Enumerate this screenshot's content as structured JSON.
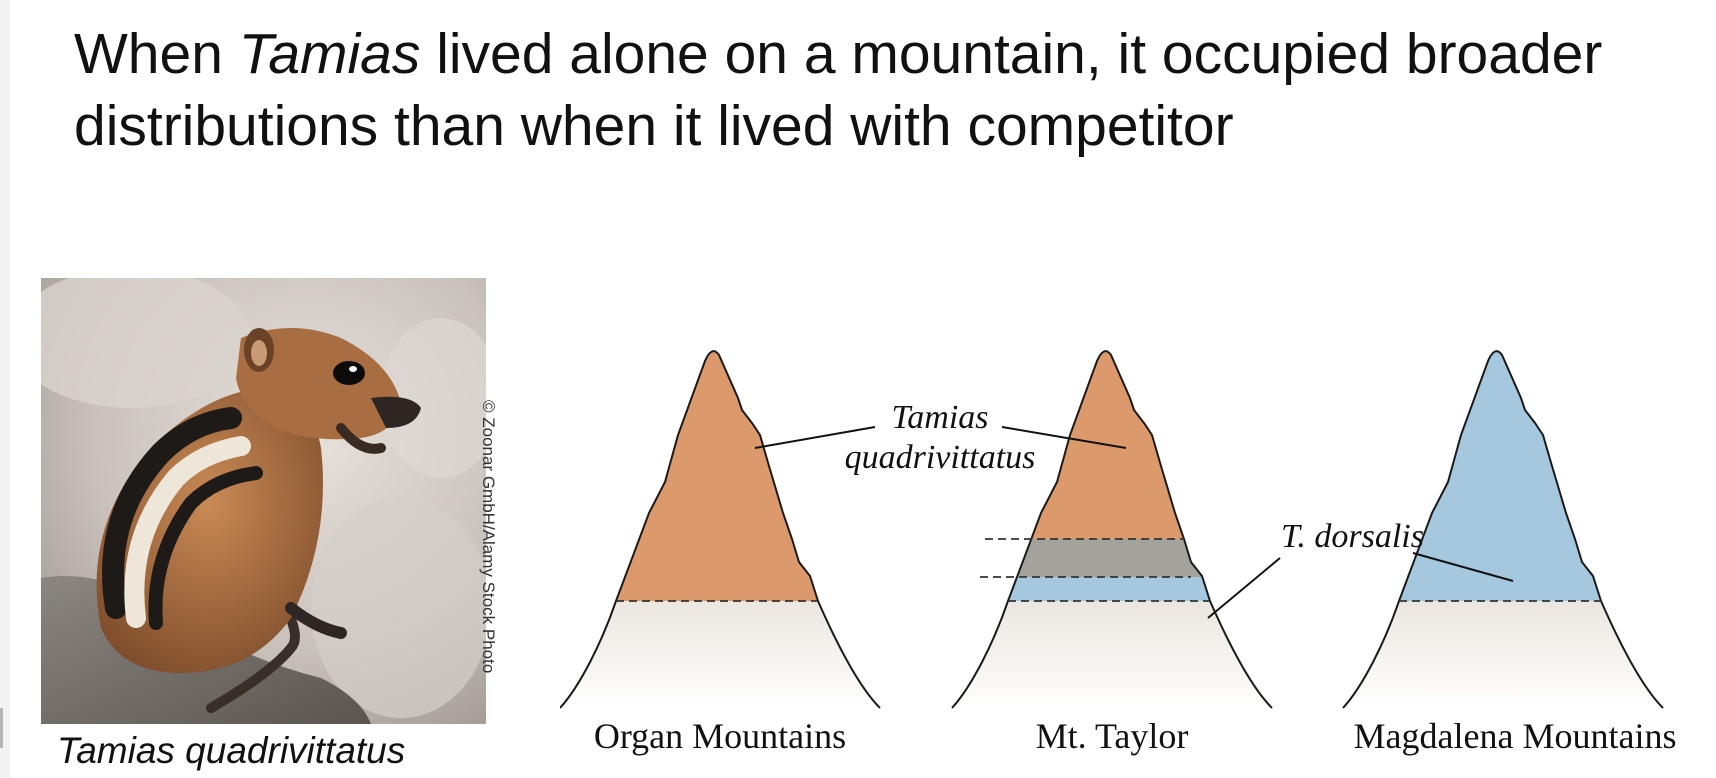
{
  "title": {
    "prefix": "When ",
    "genus": "Tamias",
    "rest": " lived alone on a mountain, it occupied broader distributions than when it lived with competitor"
  },
  "photo": {
    "credit": "© Zoonar GmbH/Alamy Stock Photo",
    "caption": "Tamias quadrivittatus"
  },
  "diagram": {
    "species_label_line1": "Tamias",
    "species_label_line2": "quadrivittatus",
    "competitor_label": "T. dorsalis",
    "mountains": [
      {
        "name": "Organ Mountains"
      },
      {
        "name": "Mt. Taylor"
      },
      {
        "name": "Magdalena Mountains"
      }
    ],
    "colors": {
      "quadrivittatus": "#dc9a6c",
      "dorsalis": "#a6c8df",
      "overlap": "#a3a39b",
      "ground": "#efebe5"
    }
  }
}
